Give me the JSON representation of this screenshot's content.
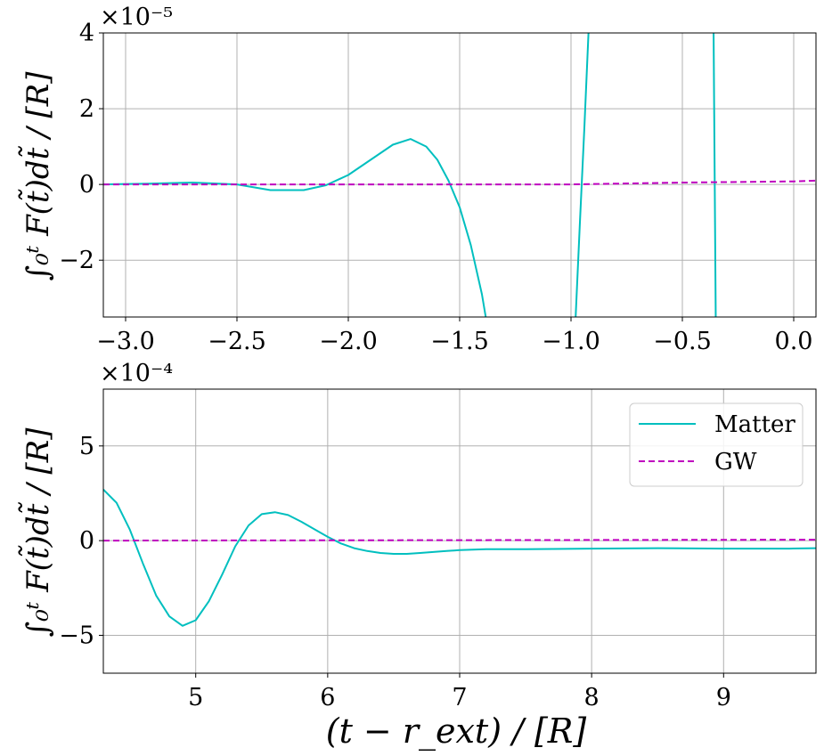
{
  "chart_data": [
    {
      "type": "line",
      "panel": "top",
      "xlim": [
        -3.1,
        0.1
      ],
      "ylim": [
        -3.5,
        4.0
      ],
      "y_scale_label": "×10⁻⁵",
      "x_ticks": [
        -3.0,
        -2.5,
        -2.0,
        -1.5,
        -1.0,
        -0.5,
        0.0
      ],
      "x_tick_labels": [
        "−3.0",
        "−2.5",
        "−2.0",
        "−1.5",
        "−1.0",
        "−0.5",
        "0.0"
      ],
      "y_ticks": [
        -2,
        0,
        2,
        4
      ],
      "y_tick_labels": [
        "−2",
        "0",
        "2",
        "4"
      ],
      "ylabel": "∫₀ᵗ F(t̃)dt̃ / [R]",
      "xlabel": "",
      "grid": true,
      "series": [
        {
          "name": "Matter",
          "color": "#00bfbf",
          "style": "solid",
          "x": [
            -3.1,
            -2.9,
            -2.7,
            -2.5,
            -2.35,
            -2.2,
            -2.1,
            -2.0,
            -1.9,
            -1.8,
            -1.72,
            -1.65,
            -1.6,
            -1.55,
            -1.5,
            -1.45,
            -1.4,
            -1.38,
            -0.98,
            -0.96,
            -0.94,
            -0.92,
            -0.36,
            -0.35
          ],
          "y": [
            0.0,
            0.02,
            0.05,
            0.0,
            -0.15,
            -0.15,
            -0.02,
            0.25,
            0.65,
            1.05,
            1.2,
            1.0,
            0.65,
            0.1,
            -0.6,
            -1.6,
            -2.9,
            -3.6,
            -3.6,
            -1.0,
            1.5,
            4.2,
            4.2,
            -3.6
          ]
        },
        {
          "name": "GW",
          "color": "#bf00bf",
          "style": "dashed",
          "x": [
            -3.1,
            -2.0,
            -1.0,
            -0.5,
            0.0,
            0.1
          ],
          "y": [
            0.0,
            0.0,
            0.0,
            0.05,
            0.08,
            0.1
          ]
        }
      ]
    },
    {
      "type": "line",
      "panel": "bottom",
      "xlim": [
        4.3,
        9.7
      ],
      "ylim": [
        -7.0,
        8.0
      ],
      "y_scale_label": "×10⁻⁴",
      "x_ticks": [
        5,
        6,
        7,
        8,
        9
      ],
      "x_tick_labels": [
        "5",
        "6",
        "7",
        "8",
        "9"
      ],
      "y_ticks": [
        -5,
        0,
        5
      ],
      "y_tick_labels": [
        "−5",
        "0",
        "5"
      ],
      "ylabel": "∫₀ᵗ F(t̃)dt̃ / [R]",
      "xlabel": "(t − r_ext) / [R]",
      "grid": true,
      "legend": {
        "placement": "top-right",
        "entries": [
          "Matter",
          "GW"
        ]
      },
      "series": [
        {
          "name": "Matter",
          "color": "#00bfbf",
          "style": "solid",
          "x": [
            4.3,
            4.4,
            4.5,
            4.6,
            4.7,
            4.8,
            4.9,
            5.0,
            5.1,
            5.2,
            5.3,
            5.4,
            5.5,
            5.6,
            5.7,
            5.8,
            5.9,
            6.0,
            6.1,
            6.2,
            6.3,
            6.4,
            6.5,
            6.6,
            6.7,
            6.8,
            6.9,
            7.0,
            7.2,
            7.5,
            8.0,
            8.5,
            9.0,
            9.5,
            9.7
          ],
          "y": [
            2.7,
            2.0,
            0.6,
            -1.2,
            -2.9,
            -4.0,
            -4.5,
            -4.2,
            -3.2,
            -1.8,
            -0.3,
            0.8,
            1.4,
            1.5,
            1.35,
            1.0,
            0.6,
            0.2,
            -0.15,
            -0.4,
            -0.55,
            -0.65,
            -0.7,
            -0.7,
            -0.65,
            -0.6,
            -0.55,
            -0.5,
            -0.45,
            -0.45,
            -0.42,
            -0.4,
            -0.42,
            -0.42,
            -0.4
          ]
        },
        {
          "name": "GW",
          "color": "#bf00bf",
          "style": "dashed",
          "x": [
            4.3,
            9.7
          ],
          "y": [
            0.0,
            0.05
          ]
        }
      ]
    }
  ]
}
